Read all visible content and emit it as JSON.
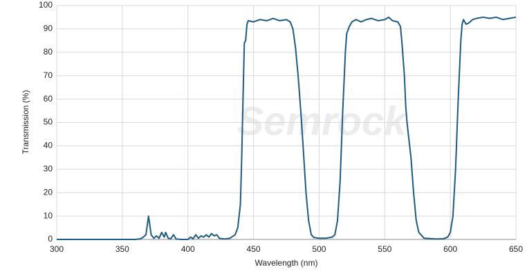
{
  "chart_data": {
    "type": "line",
    "xlabel": "Wavelength (nm)",
    "ylabel": "Transmission (%)",
    "watermark": "Semrock",
    "x": [
      300,
      320,
      340,
      360,
      364,
      366,
      368,
      370,
      372,
      374,
      376,
      378,
      380,
      382,
      383,
      385,
      387,
      389,
      391,
      395,
      400,
      402,
      404,
      406,
      408,
      410,
      412,
      414,
      416,
      418,
      420,
      422,
      424,
      428,
      432,
      436,
      438,
      440,
      441,
      442,
      443,
      444,
      445,
      446,
      450,
      455,
      460,
      465,
      470,
      475,
      478,
      480,
      482,
      484,
      486,
      488,
      490,
      492,
      494,
      496,
      500,
      505,
      510,
      512,
      514,
      516,
      518,
      520,
      521,
      523,
      525,
      528,
      532,
      536,
      540,
      545,
      550,
      553,
      556,
      560,
      562,
      563,
      565,
      566,
      567,
      568,
      570,
      572,
      574,
      576,
      580,
      590,
      595,
      598,
      600,
      602,
      604,
      606,
      608,
      609,
      610,
      612,
      614,
      617,
      620,
      625,
      630,
      635,
      640,
      645,
      650
    ],
    "values": [
      0,
      0,
      0,
      0,
      0.3,
      1,
      2,
      10,
      2,
      0.5,
      1.5,
      0.5,
      3,
      1,
      3,
      0.5,
      0.3,
      2,
      0.2,
      0,
      0,
      1,
      0.3,
      2,
      0.5,
      1.5,
      1,
      2,
      1,
      2.5,
      1.5,
      2,
      0.5,
      0.2,
      0.5,
      2,
      5,
      15,
      35,
      60,
      84,
      85,
      92,
      93.5,
      93,
      94,
      93.5,
      94.5,
      93.5,
      94,
      93,
      90,
      82,
      70,
      55,
      38,
      20,
      8,
      2,
      0.8,
      0.5,
      0.5,
      1,
      2,
      8,
      25,
      55,
      80,
      88,
      91,
      93,
      94,
      93,
      94,
      94.5,
      93.5,
      94,
      95,
      93.5,
      93,
      91,
      85,
      70,
      57,
      50,
      45,
      35,
      20,
      8,
      3,
      0.5,
      0.2,
      0.3,
      1,
      3,
      10,
      30,
      60,
      85,
      92,
      94,
      92,
      92.5,
      94,
      94.5,
      95,
      94.5,
      95,
      94,
      94.5,
      95
    ],
    "color": "#1c5a82",
    "xlim": [
      300,
      650
    ],
    "xticks": [
      300,
      350,
      400,
      450,
      500,
      550,
      600,
      650
    ],
    "ylim": [
      0,
      100
    ],
    "yticks": [
      0,
      10,
      20,
      30,
      40,
      50,
      60,
      70,
      80,
      90,
      100
    ],
    "grid": true
  }
}
